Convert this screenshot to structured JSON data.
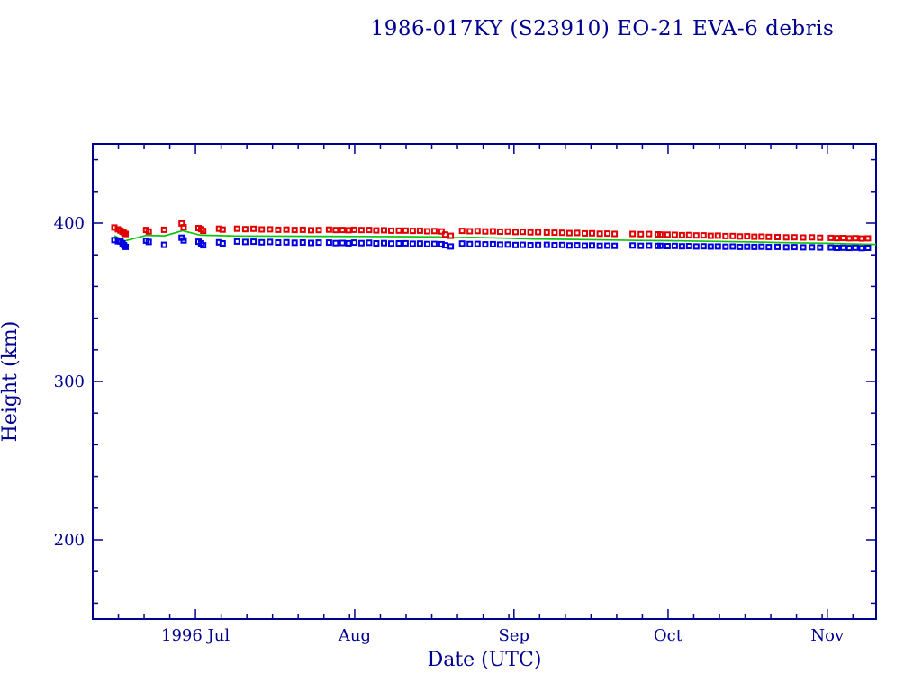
{
  "chart_data": {
    "type": "scatter",
    "title": "1986-017KY (S23910) EO-21 EVA-6 debris",
    "xlabel": "Date (UTC)",
    "ylabel": "Height (km)",
    "grid": false,
    "legend": "none",
    "colors": {
      "axis_and_text": "#000090",
      "apogee": "#e10000",
      "perigee": "#0000e1",
      "mean_line": "#0fc40f",
      "background": "#ffffff"
    },
    "x_axis": {
      "epoch_day0": "1996-06-11",
      "span_days": 152.5,
      "major_ticks": [
        {
          "day": 20,
          "label": "1996 Jul"
        },
        {
          "day": 51,
          "label": "Aug"
        },
        {
          "day": 82,
          "label": "Sep"
        },
        {
          "day": 112,
          "label": "Oct"
        },
        {
          "day": 143,
          "label": "Nov"
        }
      ],
      "minor_tick_days": [
        5,
        10,
        15,
        25,
        30,
        35,
        40,
        45,
        50,
        56,
        61,
        66,
        71,
        76,
        81,
        87,
        92,
        97,
        102,
        107,
        117,
        122,
        127,
        132,
        137,
        142,
        148
      ]
    },
    "y_axis": {
      "lim": [
        150,
        450
      ],
      "major_ticks": [
        {
          "value": 200,
          "label": "200"
        },
        {
          "value": 300,
          "label": "300"
        },
        {
          "value": 400,
          "label": "400"
        }
      ],
      "minor_tick_values": [
        160,
        180,
        220,
        240,
        260,
        280,
        320,
        340,
        360,
        380,
        420,
        440
      ]
    },
    "scatter_x_days": [
      4.2,
      4.9,
      5.4,
      5.8,
      6.1,
      6.4,
      10.4,
      10.9,
      13.9,
      17.3,
      17.7,
      20.6,
      21.1,
      21.5,
      24.6,
      25.3,
      28.1,
      29.7,
      31.3,
      32.9,
      34.5,
      36.1,
      37.7,
      39.3,
      40.9,
      42.5,
      44.0,
      46.0,
      47.3,
      48.6,
      49.8,
      50.9,
      52.3,
      53.8,
      55.2,
      56.7,
      58.1,
      59.6,
      60.9,
      62.3,
      63.7,
      65.1,
      66.5,
      67.9,
      68.6,
      69.7,
      71.9,
      73.4,
      74.9,
      76.4,
      77.9,
      79.3,
      80.8,
      82.3,
      83.7,
      85.2,
      86.7,
      88.4,
      89.9,
      91.4,
      92.8,
      94.3,
      95.8,
      97.2,
      98.7,
      100.2,
      101.6,
      105.1,
      106.7,
      108.3,
      110.0,
      110.5,
      111.9,
      113.3,
      114.7,
      116.1,
      117.5,
      118.9,
      120.3,
      121.7,
      123.2,
      124.6,
      126.0,
      127.4,
      128.8,
      130.2,
      131.6,
      133.3,
      135.0,
      136.6,
      138.3,
      140.0,
      141.6,
      143.7,
      144.9,
      146.1,
      147.3,
      148.5,
      149.7,
      150.9
    ],
    "series": [
      {
        "name": "apogee-height",
        "type": "scatter",
        "marker": "open-square",
        "color": "#e10000",
        "values": [
          397.2,
          396.1,
          395.3,
          394.6,
          393.8,
          393.1,
          395.7,
          394.7,
          395.8,
          399.8,
          397.4,
          396.9,
          396.2,
          395.1,
          396.5,
          395.9,
          396.5,
          396.2,
          396.4,
          396.0,
          396.1,
          395.8,
          395.9,
          395.7,
          395.8,
          395.5,
          395.6,
          395.9,
          395.6,
          395.7,
          395.5,
          395.8,
          395.6,
          395.7,
          395.4,
          395.5,
          395.2,
          395.3,
          395.3,
          395.1,
          395.2,
          394.9,
          395.0,
          394.8,
          392.8,
          392.0,
          395.1,
          394.9,
          395.0,
          394.8,
          394.9,
          394.6,
          394.7,
          394.4,
          394.5,
          394.2,
          394.3,
          394.1,
          394.0,
          393.9,
          393.7,
          393.8,
          393.5,
          393.6,
          393.3,
          393.4,
          393.2,
          393.2,
          393.0,
          393.1,
          392.9,
          392.8,
          392.7,
          392.6,
          392.4,
          392.5,
          392.2,
          392.3,
          392.0,
          392.1,
          391.8,
          391.9,
          391.6,
          391.7,
          391.4,
          391.5,
          391.3,
          391.2,
          391.0,
          391.1,
          390.9,
          391.0,
          390.8,
          390.7,
          390.5,
          390.6,
          390.4,
          390.5,
          390.3,
          390.4
        ]
      },
      {
        "name": "perigee-height",
        "type": "scatter",
        "marker": "open-square",
        "color": "#0000e1",
        "values": [
          389.3,
          388.6,
          388.4,
          387.2,
          386.1,
          385.0,
          389.0,
          388.1,
          386.3,
          390.8,
          389.1,
          388.3,
          387.2,
          386.0,
          387.9,
          387.2,
          388.4,
          388.1,
          388.3,
          387.9,
          388.1,
          387.8,
          387.9,
          387.6,
          387.8,
          387.5,
          387.7,
          387.7,
          387.4,
          387.5,
          387.3,
          387.7,
          387.4,
          387.6,
          387.2,
          387.4,
          387.1,
          387.2,
          387.3,
          387.0,
          387.1,
          386.8,
          386.9,
          386.7,
          386.0,
          385.3,
          387.1,
          386.8,
          386.9,
          386.6,
          386.7,
          386.4,
          386.5,
          386.2,
          386.3,
          386.1,
          386.2,
          386.3,
          386.1,
          386.2,
          385.9,
          386.0,
          385.8,
          385.9,
          385.7,
          385.8,
          385.7,
          385.9,
          385.7,
          385.8,
          385.6,
          385.7,
          385.5,
          385.6,
          385.4,
          385.5,
          385.3,
          385.4,
          385.2,
          385.3,
          385.1,
          385.2,
          385.0,
          385.1,
          385.0,
          385.1,
          384.9,
          385.0,
          384.8,
          384.9,
          384.7,
          384.8,
          384.6,
          384.6,
          384.4,
          384.5,
          384.3,
          384.5,
          384.2,
          384.4
        ]
      },
      {
        "name": "mean-height",
        "type": "line",
        "color": "#0fc40f",
        "x_days": [
          4.2,
          6.3,
          10.4,
          14.0,
          17.5,
          21.0,
          28.0,
          44.0,
          52.0,
          60.0,
          67.5,
          69.0,
          74.0,
          80.0,
          86.0,
          92.0,
          100.0,
          106.0,
          112.0,
          120.0,
          128.0,
          136.0,
          143.0,
          148.0,
          152.5
        ],
        "values": [
          392.0,
          388.8,
          392.3,
          392.0,
          395.2,
          392.4,
          391.9,
          391.7,
          391.6,
          391.5,
          391.3,
          390.7,
          391.0,
          390.5,
          390.0,
          389.8,
          389.4,
          389.1,
          388.9,
          388.5,
          388.1,
          387.6,
          387.3,
          386.9,
          386.6
        ]
      }
    ]
  }
}
